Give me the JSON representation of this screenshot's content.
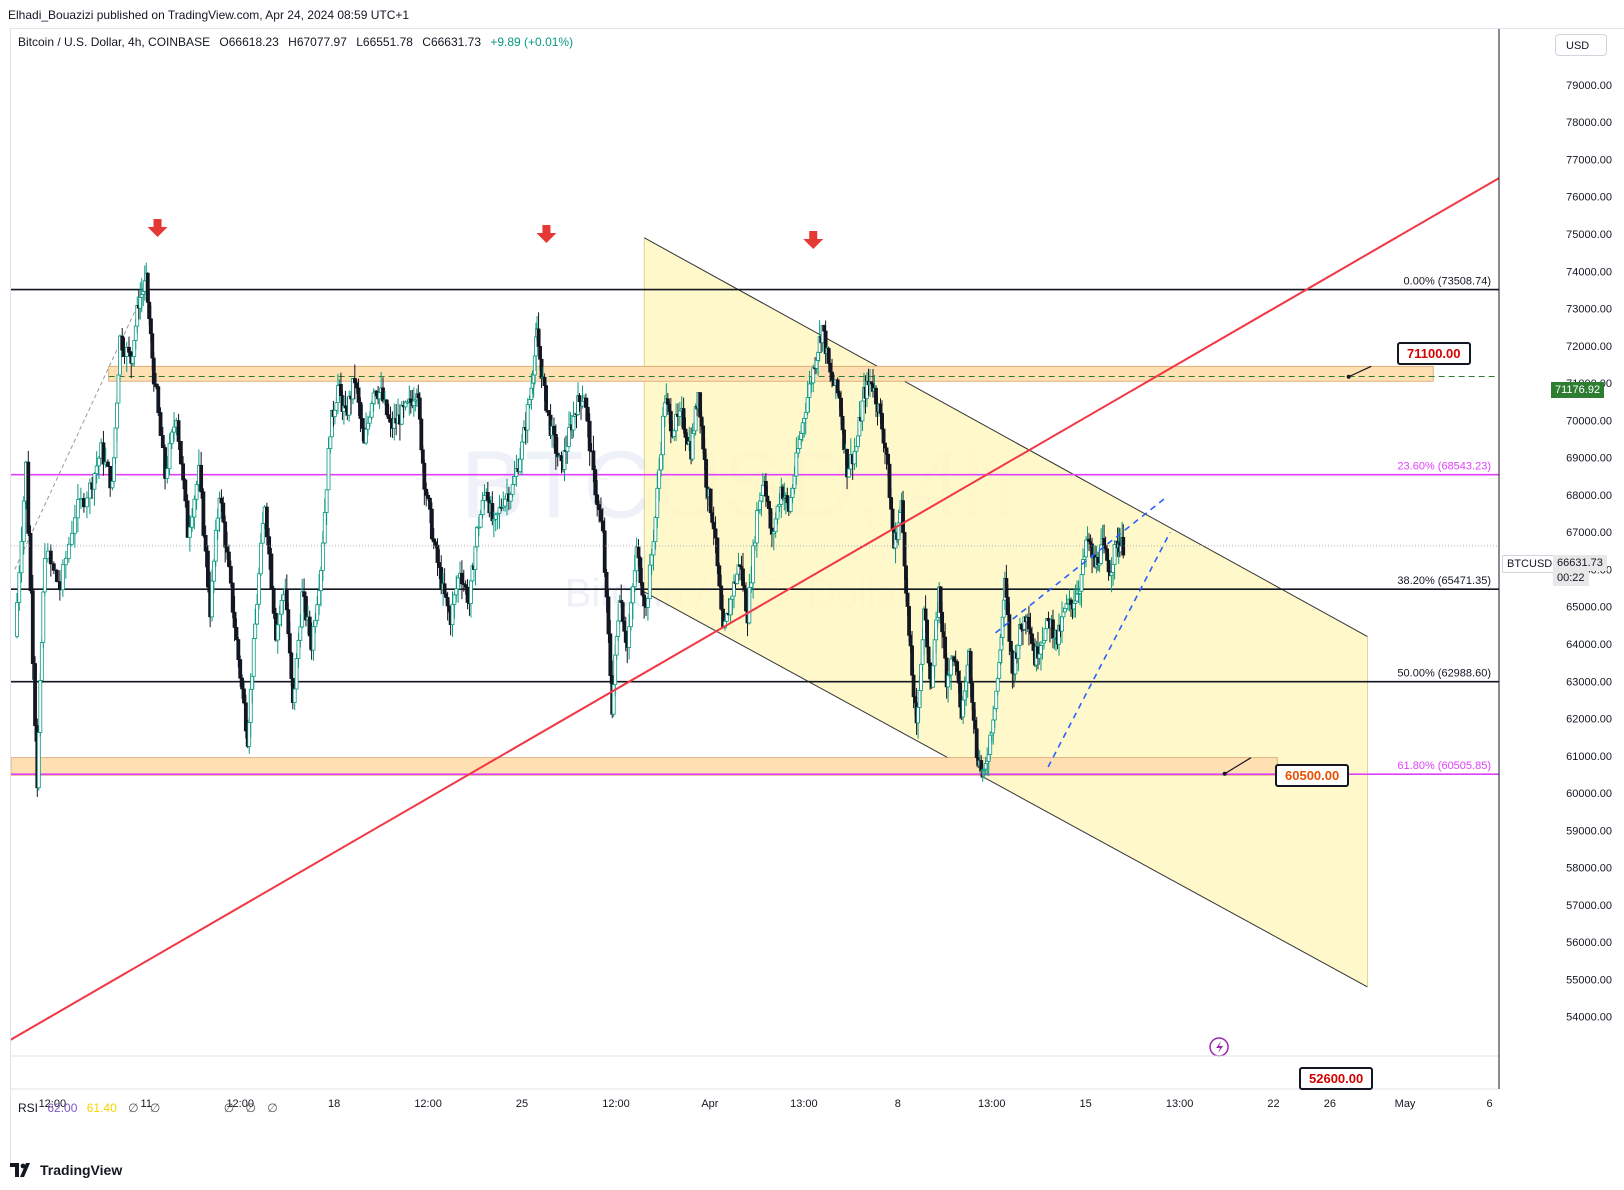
{
  "header": {
    "published": "Elhadi_Bouazizi published on TradingView.com, Apr 24, 2024 08:59 UTC+1"
  },
  "legend": {
    "symbol": "Bitcoin / U.S. Dollar, 4h, COINBASE",
    "open": "O66618.23",
    "high": "H67077.97",
    "low": "L66551.78",
    "close": "C66631.73",
    "change": "+9.89 (+0.01%)"
  },
  "currency_button": "USD",
  "watermark": {
    "ticker": "BTCUSD, 4h",
    "name": "Bitcoin / U.S. Dollar"
  },
  "rsi": {
    "label": "RSI",
    "value1": "62.00",
    "value2": "61.40",
    "sym": "∅"
  },
  "tags": {
    "resistance_label": "71100.00",
    "support_label": "60500.00",
    "target_label": "52600.00",
    "green_axis": "71176.92",
    "ticker_axis": "BTCUSD",
    "last_price": "66631.73",
    "countdown": "00:22"
  },
  "footer": {
    "brand": "TradingView"
  },
  "colors": {
    "up": "#089981",
    "down": "#131722",
    "fib_pink": "#e040fb",
    "trend_red": "#f23645",
    "channel_fill": "#fff7c2",
    "zone_fill": "#ffe0b2",
    "dash_blue": "#2962ff",
    "green_dash": "#2e7d32"
  },
  "chart_data": {
    "type": "candlestick",
    "title": "Bitcoin / U.S. Dollar, 4h, COINBASE",
    "ylim": [
      53000,
      80500
    ],
    "y_ticks": [
      54000,
      55000,
      56000,
      57000,
      58000,
      59000,
      60000,
      61000,
      62000,
      63000,
      64000,
      65000,
      66000,
      67000,
      68000,
      69000,
      70000,
      71000,
      72000,
      73000,
      74000,
      75000,
      76000,
      77000,
      78000,
      79000
    ],
    "y_tick_labels": [
      "54000.00",
      "55000.00",
      "56000.00",
      "57000.00",
      "58000.00",
      "59000.00",
      "60000.00",
      "61000.00",
      "62000.00",
      "63000.00",
      "64000.00",
      "65000.00",
      "66000.00",
      "67000.00",
      "68000.00",
      "69000.00",
      "70000.00",
      "71000.00",
      "72000.00",
      "73000.00",
      "74000.00",
      "75000.00",
      "76000.00",
      "77000.00",
      "78000.00",
      "79000.00"
    ],
    "x_ticks": [
      {
        "label": "12:00",
        "t": 2
      },
      {
        "label": "11",
        "t": 7
      },
      {
        "label": "12:00",
        "t": 12
      },
      {
        "label": "18",
        "t": 17
      },
      {
        "label": "12:00",
        "t": 22
      },
      {
        "label": "25",
        "t": 27
      },
      {
        "label": "12:00",
        "t": 32
      },
      {
        "label": "Apr",
        "t": 37
      },
      {
        "label": "13:00",
        "t": 42
      },
      {
        "label": "8",
        "t": 47
      },
      {
        "label": "13:00",
        "t": 52
      },
      {
        "label": "15",
        "t": 57
      },
      {
        "label": "13:00",
        "t": 62
      },
      {
        "label": "22",
        "t": 67
      },
      {
        "label": "26",
        "t": 70
      },
      {
        "label": "May",
        "t": 74
      },
      {
        "label": "6",
        "t": 78.5
      }
    ],
    "series_path": [
      {
        "t": 0,
        "p": 64200
      },
      {
        "t": 0.6,
        "p": 68800
      },
      {
        "t": 1.2,
        "p": 60300
      },
      {
        "t": 1.6,
        "p": 66500
      },
      {
        "t": 2.4,
        "p": 65500
      },
      {
        "t": 3.2,
        "p": 67500
      },
      {
        "t": 4.0,
        "p": 68200
      },
      {
        "t": 4.6,
        "p": 69200
      },
      {
        "t": 5.2,
        "p": 68200
      },
      {
        "t": 5.6,
        "p": 72200
      },
      {
        "t": 6.2,
        "p": 71600
      },
      {
        "t": 6.6,
        "p": 73200
      },
      {
        "t": 7.0,
        "p": 73700
      },
      {
        "t": 7.4,
        "p": 71200
      },
      {
        "t": 8.0,
        "p": 68500
      },
      {
        "t": 8.6,
        "p": 70200
      },
      {
        "t": 9.2,
        "p": 67000
      },
      {
        "t": 9.8,
        "p": 68600
      },
      {
        "t": 10.4,
        "p": 64900
      },
      {
        "t": 10.9,
        "p": 68100
      },
      {
        "t": 11.4,
        "p": 65900
      },
      {
        "t": 11.9,
        "p": 63600
      },
      {
        "t": 12.4,
        "p": 61500
      },
      {
        "t": 12.8,
        "p": 64500
      },
      {
        "t": 13.3,
        "p": 67800
      },
      {
        "t": 13.9,
        "p": 64300
      },
      {
        "t": 14.4,
        "p": 65600
      },
      {
        "t": 14.8,
        "p": 62300
      },
      {
        "t": 15.3,
        "p": 65300
      },
      {
        "t": 15.8,
        "p": 64000
      },
      {
        "t": 16.3,
        "p": 66100
      },
      {
        "t": 16.8,
        "p": 69800
      },
      {
        "t": 17.2,
        "p": 70900
      },
      {
        "t": 17.6,
        "p": 70100
      },
      {
        "t": 18.1,
        "p": 71100
      },
      {
        "t": 18.6,
        "p": 69300
      },
      {
        "t": 19.1,
        "p": 70900
      },
      {
        "t": 19.5,
        "p": 70700
      },
      {
        "t": 20.0,
        "p": 69800
      },
      {
        "t": 20.5,
        "p": 70100
      },
      {
        "t": 21.0,
        "p": 70400
      },
      {
        "t": 21.4,
        "p": 70900
      },
      {
        "t": 21.8,
        "p": 68400
      },
      {
        "t": 22.3,
        "p": 66700
      },
      {
        "t": 22.8,
        "p": 65400
      },
      {
        "t": 23.2,
        "p": 64700
      },
      {
        "t": 23.7,
        "p": 66000
      },
      {
        "t": 24.2,
        "p": 65100
      },
      {
        "t": 24.6,
        "p": 67000
      },
      {
        "t": 25.1,
        "p": 68200
      },
      {
        "t": 25.5,
        "p": 67100
      },
      {
        "t": 26.0,
        "p": 67900
      },
      {
        "t": 26.5,
        "p": 68200
      },
      {
        "t": 27.0,
        "p": 69300
      },
      {
        "t": 27.5,
        "p": 70900
      },
      {
        "t": 27.8,
        "p": 72300
      },
      {
        "t": 28.2,
        "p": 70700
      },
      {
        "t": 28.6,
        "p": 69600
      },
      {
        "t": 29.1,
        "p": 68700
      },
      {
        "t": 29.5,
        "p": 69600
      },
      {
        "t": 29.9,
        "p": 70400
      },
      {
        "t": 30.3,
        "p": 70700
      },
      {
        "t": 30.8,
        "p": 68500
      },
      {
        "t": 31.3,
        "p": 66900
      },
      {
        "t": 31.8,
        "p": 62300
      },
      {
        "t": 32.2,
        "p": 65400
      },
      {
        "t": 32.6,
        "p": 63900
      },
      {
        "t": 33.1,
        "p": 66500
      },
      {
        "t": 33.6,
        "p": 64900
      },
      {
        "t": 34.1,
        "p": 67400
      },
      {
        "t": 34.6,
        "p": 70600
      },
      {
        "t": 35.0,
        "p": 69800
      },
      {
        "t": 35.5,
        "p": 70100
      },
      {
        "t": 36.0,
        "p": 69200
      },
      {
        "t": 36.4,
        "p": 70800
      },
      {
        "t": 36.8,
        "p": 68400
      },
      {
        "t": 37.2,
        "p": 67200
      },
      {
        "t": 37.7,
        "p": 64200
      },
      {
        "t": 38.2,
        "p": 65400
      },
      {
        "t": 38.6,
        "p": 66200
      },
      {
        "t": 39.0,
        "p": 64800
      },
      {
        "t": 39.5,
        "p": 67500
      },
      {
        "t": 39.9,
        "p": 68500
      },
      {
        "t": 40.3,
        "p": 66800
      },
      {
        "t": 40.8,
        "p": 68200
      },
      {
        "t": 41.2,
        "p": 67600
      },
      {
        "t": 41.7,
        "p": 69200
      },
      {
        "t": 42.1,
        "p": 70400
      },
      {
        "t": 42.6,
        "p": 71600
      },
      {
        "t": 43.0,
        "p": 72500
      },
      {
        "t": 43.4,
        "p": 71200
      },
      {
        "t": 43.9,
        "p": 70600
      },
      {
        "t": 44.3,
        "p": 68700
      },
      {
        "t": 44.8,
        "p": 69300
      },
      {
        "t": 45.2,
        "p": 70700
      },
      {
        "t": 45.6,
        "p": 71100
      },
      {
        "t": 46.0,
        "p": 70300
      },
      {
        "t": 46.4,
        "p": 69100
      },
      {
        "t": 46.8,
        "p": 66600
      },
      {
        "t": 47.2,
        "p": 67700
      },
      {
        "t": 47.6,
        "p": 64200
      },
      {
        "t": 48.0,
        "p": 61700
      },
      {
        "t": 48.4,
        "p": 64800
      },
      {
        "t": 48.8,
        "p": 62900
      },
      {
        "t": 49.2,
        "p": 65400
      },
      {
        "t": 49.6,
        "p": 63100
      },
      {
        "t": 50.0,
        "p": 63700
      },
      {
        "t": 50.4,
        "p": 62100
      },
      {
        "t": 50.8,
        "p": 63700
      },
      {
        "t": 51.2,
        "p": 61100
      },
      {
        "t": 51.6,
        "p": 60400
      },
      {
        "t": 52.0,
        "p": 61800
      },
      {
        "t": 52.4,
        "p": 63400
      },
      {
        "t": 52.7,
        "p": 65600
      },
      {
        "t": 53.1,
        "p": 63200
      },
      {
        "t": 53.5,
        "p": 64300
      },
      {
        "t": 53.9,
        "p": 64900
      },
      {
        "t": 54.3,
        "p": 63600
      },
      {
        "t": 54.7,
        "p": 64200
      },
      {
        "t": 55.1,
        "p": 64600
      },
      {
        "t": 55.5,
        "p": 64100
      },
      {
        "t": 55.9,
        "p": 64900
      },
      {
        "t": 56.3,
        "p": 65100
      },
      {
        "t": 56.7,
        "p": 65600
      },
      {
        "t": 57.1,
        "p": 66800
      },
      {
        "t": 57.5,
        "p": 66100
      },
      {
        "t": 57.9,
        "p": 66600
      },
      {
        "t": 58.3,
        "p": 66000
      },
      {
        "t": 58.7,
        "p": 66750
      },
      {
        "t": 59.0,
        "p": 66630
      }
    ]
  },
  "drawings": {
    "fib_levels": [
      {
        "label": "0.00% (73508.74)",
        "price": 73508.74,
        "kind": "black"
      },
      {
        "label": "23.60% (68543.23)",
        "price": 68543.23,
        "kind": "pink"
      },
      {
        "label": "38.20% (65471.35)",
        "price": 65471.35,
        "kind": "black"
      },
      {
        "label": "50.00% (62988.60)",
        "price": 62988.6,
        "kind": "black"
      },
      {
        "label": "61.80% (60505.85)",
        "price": 60505.85,
        "kind": "pink"
      }
    ],
    "arrows_t": [
      7.6,
      28.3,
      42.5
    ],
    "resistance_zone": [
      71050,
      71450
    ],
    "support_zone": [
      60480,
      60950
    ],
    "green_level": 71176.92,
    "trendline": [
      {
        "t": -0.5,
        "p": 53300
      },
      {
        "t": 79,
        "p": 76500
      }
    ],
    "channel_upper": [
      {
        "t": 33.5,
        "p": 74900
      },
      {
        "t": 72,
        "p": 64200
      }
    ],
    "channel_lower": [
      {
        "t": 33.5,
        "p": 65400
      },
      {
        "t": 72,
        "p": 54800
      }
    ],
    "wedge_upper": [
      {
        "t": 52.2,
        "p": 64300
      },
      {
        "t": 61.2,
        "p": 67900
      }
    ],
    "wedge_lower": [
      {
        "t": 55.0,
        "p": 60700
      },
      {
        "t": 61.5,
        "p": 67000
      }
    ],
    "fib_diagonal": [
      {
        "t": 0,
        "p": 66000
      },
      {
        "t": 7.2,
        "p": 73800
      }
    ],
    "last_price": 66631.73
  }
}
